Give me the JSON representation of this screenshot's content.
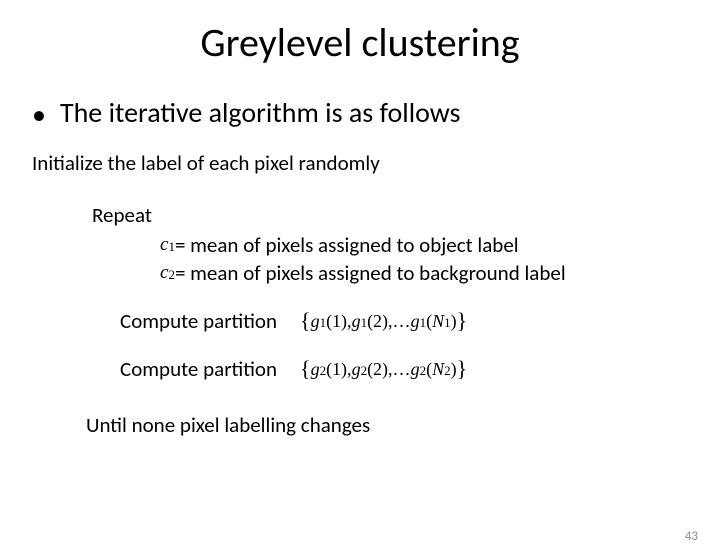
{
  "title": "Greylevel clustering",
  "bullet": "The iterative algorithm is as follows",
  "init": "Initialize the label of each pixel randomly",
  "repeat": "Repeat",
  "assign1": {
    "var": "c",
    "sub": "1",
    "text": "= mean of pixels assigned to object label"
  },
  "assign2": {
    "var": "c",
    "sub": "2",
    "text": "= mean of pixels assigned to background label"
  },
  "compute1": {
    "label": "Compute partition",
    "lbrace": "{",
    "g": "g",
    "s": "1",
    "p1": "(1), ",
    "p2": "(2),…  ",
    "nvar": "N",
    "close": ")",
    "rbrace": "}"
  },
  "compute2": {
    "label": "Compute partition",
    "lbrace": "{",
    "g": "g",
    "s": "2",
    "p1": "(1), ",
    "p2": "(2),…  ",
    "nvar": "N",
    "close": ")",
    "rbrace": "}"
  },
  "until": "Until none pixel labelling changes",
  "pagenum": "43",
  "colors": {
    "text": "#000000",
    "bg": "#ffffff",
    "pagenum": "#8a8a8a"
  }
}
